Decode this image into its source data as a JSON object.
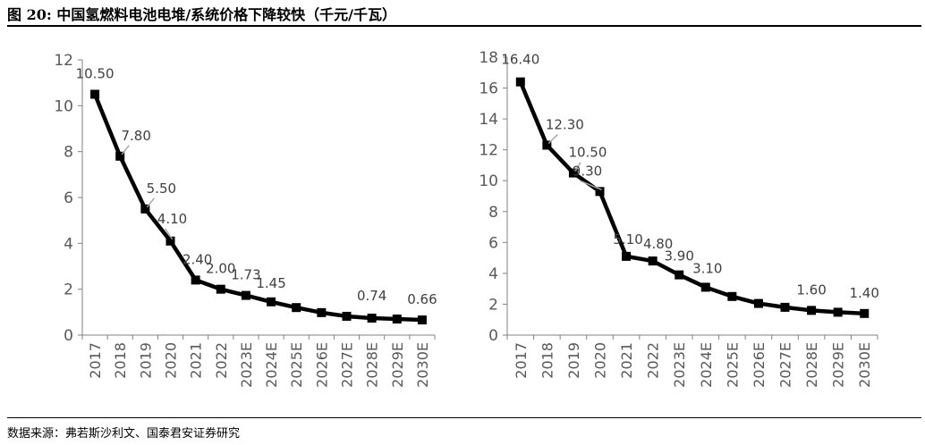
{
  "figure": {
    "title": "图 20:  中国氢燃料电池电堆/系统价格下降较快（千元/千瓦）",
    "source": "数据来源：弗若斯沙利文、国泰君安证券研究"
  },
  "chart_data": [
    {
      "type": "line",
      "title": "",
      "xlabel": "",
      "ylabel": "",
      "ylim": [
        0,
        12
      ],
      "yticks": [
        0,
        2,
        4,
        6,
        8,
        10,
        12
      ],
      "grid": false,
      "legend": "none",
      "categories": [
        "2017",
        "2018",
        "2019",
        "2020",
        "2021",
        "2022",
        "2023E",
        "2024E",
        "2025E",
        "2026E",
        "2027E",
        "2028E",
        "2029E",
        "2030E"
      ],
      "series": [
        {
          "values": [
            10.5,
            7.8,
            5.5,
            4.1,
            2.4,
            2.0,
            1.73,
            1.45,
            1.2,
            0.98,
            0.82,
            0.74,
            0.7,
            0.66
          ],
          "data_labels": [
            "10.50",
            "7.80",
            "5.50",
            "4.10",
            "2.40",
            "2.00",
            "1.73",
            "1.45",
            "",
            "",
            "",
            "0.74",
            "",
            "0.66"
          ]
        }
      ]
    },
    {
      "type": "line",
      "title": "",
      "xlabel": "",
      "ylabel": "",
      "ylim": [
        0,
        18
      ],
      "yticks": [
        0,
        2,
        4,
        6,
        8,
        10,
        12,
        14,
        16,
        18
      ],
      "grid": false,
      "legend": "none",
      "categories": [
        "2017",
        "2018",
        "2019",
        "2020",
        "2021",
        "2022",
        "2023E",
        "2024E",
        "2025E",
        "2026E",
        "2027E",
        "2028E",
        "2029E",
        "2030E"
      ],
      "series": [
        {
          "values": [
            16.4,
            12.3,
            10.5,
            9.3,
            5.1,
            4.8,
            3.9,
            3.1,
            2.5,
            2.05,
            1.8,
            1.6,
            1.48,
            1.4
          ],
          "data_labels": [
            "16.40",
            "12.30",
            "10.50",
            "9.30",
            "5.10",
            "4.80",
            "3.90",
            "3.10",
            "",
            "",
            "",
            "1.60",
            "",
            "1.40"
          ]
        }
      ]
    }
  ],
  "colors": {
    "line": "#000000",
    "axis": "#808080",
    "tick_text": "#595959",
    "label_text": "#404040",
    "leader": "#a6a6a6"
  }
}
